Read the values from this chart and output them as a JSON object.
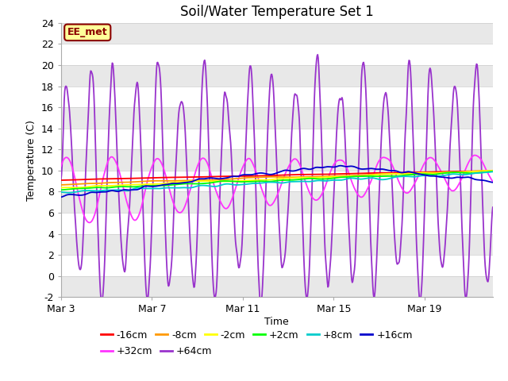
{
  "title": "Soil/Water Temperature Set 1",
  "xlabel": "Time",
  "ylabel": "Temperature (C)",
  "ylim": [
    -2,
    24
  ],
  "yticks": [
    -2,
    0,
    2,
    4,
    6,
    8,
    10,
    12,
    14,
    16,
    18,
    20,
    22,
    24
  ],
  "xtick_labels": [
    "Mar 3",
    "Mar 7",
    "Mar 11",
    "Mar 15",
    "Mar 19"
  ],
  "xtick_positions": [
    0,
    4,
    8,
    12,
    16
  ],
  "xlim": [
    0,
    19
  ],
  "plot_bg_color": "#ffffff",
  "stripe_color": "#e8e8e8",
  "grid_color": "#e8e8e8",
  "annotation_text": "EE_met",
  "annotation_bg": "#ffff99",
  "annotation_border": "#8B0000",
  "series_colors": {
    "-16cm": "#ff0000",
    "-8cm": "#ff9900",
    "-2cm": "#ffff00",
    "+2cm": "#00ff00",
    "+8cm": "#00cccc",
    "+16cm": "#0000cc",
    "+32cm": "#ff33ff",
    "+64cm": "#9933cc"
  },
  "legend_order": [
    "-16cm",
    "-8cm",
    "-2cm",
    "+2cm",
    "+8cm",
    "+16cm",
    "+32cm",
    "+64cm"
  ]
}
